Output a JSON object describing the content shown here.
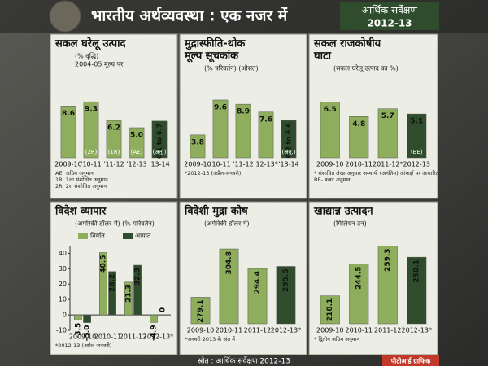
{
  "header": {
    "title": "भारतीय अर्थव्यवस्था : एक नजर में",
    "edition": "आर्थिक सर्वेक्षण",
    "year": "2012-13"
  },
  "footer": {
    "source": "स्रोत : आर्थिक सर्वेक्षण 2012-13",
    "credit": "पीटीआई ग्राफिक"
  },
  "chart_data": [
    {
      "type": "bar",
      "title": [
        "सकल घरेलू उत्पाद"
      ],
      "subtitles": [
        "(% वृद्धि)",
        "2004-05 मूल्य पर"
      ],
      "categories": [
        "2009-10",
        "'10-11",
        "'11-12",
        "'12-13",
        "'13-14"
      ],
      "values": [
        8.6,
        9.3,
        6.2,
        5.0,
        6.1
      ],
      "value_labels": [
        "8.6",
        "9.3",
        "6.2",
        "5.0",
        "6.1 to 6.7"
      ],
      "colors": [
        "#8fae5d",
        "#8fae5d",
        "#8fae5d",
        "#8fae5d",
        "#2f4d2c"
      ],
      "bar_notes": [
        null,
        "(2R)",
        "(1R)",
        "(AE)",
        "(अनु.)"
      ],
      "notes": [
        "AE: अग्रिम अनुमान",
        "1R: 1ला संशोधित अनुमान",
        "2R: 2रा संशोधित अनुमान"
      ],
      "ylim": [
        0,
        10
      ]
    },
    {
      "type": "bar",
      "title": [
        "मुद्रास्फीति-थोक",
        "मूल्य सूचकांक"
      ],
      "subtitles": [
        "(% परिवर्तन)   (औसत)"
      ],
      "categories": [
        "2009-10",
        "'10-11",
        "'11-12",
        "'12-13*",
        "'13-14"
      ],
      "values": [
        3.8,
        9.6,
        8.9,
        7.6,
        6.2
      ],
      "value_labels": [
        "3.8",
        "9.6",
        "8.9",
        "7.6",
        "6.2 to 6.6"
      ],
      "colors": [
        "#8fae5d",
        "#8fae5d",
        "#8fae5d",
        "#8fae5d",
        "#2f4d2c"
      ],
      "bar_notes": [
        null,
        null,
        null,
        null,
        "(अनु.)"
      ],
      "notes": [
        "*2012-13 (अप्रैल-जनवरी)"
      ],
      "ylim": [
        0,
        10
      ]
    },
    {
      "type": "bar",
      "title": [
        "सकल राजकोषीय",
        "घाटा"
      ],
      "subtitles": [
        "(सकल घरेलू उत्पाद का %)"
      ],
      "categories": [
        "2009-10",
        "2010-11",
        "2011-12*",
        "2012-13"
      ],
      "values": [
        6.5,
        4.8,
        5.7,
        5.1
      ],
      "colors": [
        "#8fae5d",
        "#8fae5d",
        "#8fae5d",
        "#2f4d2c"
      ],
      "bar_notes": [
        null,
        null,
        null,
        "(BE)"
      ],
      "notes": [
        "* संसाधित लेखा अनुसार अस्थायी (अनंतिम) आंकड़ों पर आधारित",
        "BE- बजट अनुमान"
      ],
      "ylim": [
        0,
        7
      ]
    },
    {
      "type": "bar",
      "title": [
        "विदेश व्यापार"
      ],
      "subtitles": [
        "(अमेरिकी डॉलर में) (% परिवर्तन)"
      ],
      "categories": [
        "2009-10",
        "2010-11",
        "2011-12",
        "2012-13*"
      ],
      "series": [
        {
          "name": "निर्यात",
          "color": "#8fae5d",
          "values": [
            -3.5,
            40.5,
            21.3,
            -4.9
          ]
        },
        {
          "name": "आयात",
          "color": "#2f4d2c",
          "values": [
            -5.0,
            28.2,
            32.3,
            0
          ],
          "value_labels": [
            "-5.0",
            "28.2",
            "32.3",
            "0"
          ]
        }
      ],
      "ylim": [
        -10,
        45
      ],
      "yticks": [
        40,
        30,
        20,
        10,
        0,
        -10
      ],
      "notes": [
        "*2012-13 (अप्रैल-जनवरी)"
      ]
    },
    {
      "type": "bar",
      "title": [
        "विदेशी मुद्रा कोष"
      ],
      "subtitles": [
        "(अमेरिकी डॉलर में)"
      ],
      "categories": [
        "2009-10",
        "2010-11",
        "2011-12",
        "2012-13*"
      ],
      "values": [
        279.1,
        304.8,
        294.4,
        295.5
      ],
      "colors": [
        "#8fae5d",
        "#8fae5d",
        "#8fae5d",
        "#2f4d2c"
      ],
      "notes": [
        "*जनवरी 2013 के अंत में"
      ],
      "ylim": [
        265,
        310
      ]
    },
    {
      "type": "bar",
      "title": [
        "खाद्यान्न उत्पादन"
      ],
      "subtitles": [
        "(मिलियन टन)"
      ],
      "categories": [
        "2009-10",
        "2010-11",
        "2011-12",
        "2012-13*"
      ],
      "values": [
        218.1,
        244.5,
        259.3,
        250.1
      ],
      "colors": [
        "#8fae5d",
        "#8fae5d",
        "#8fae5d",
        "#2f4d2c"
      ],
      "notes": [
        "* द्वितीय अग्रिम अनुमान"
      ],
      "ylim": [
        195,
        265
      ]
    }
  ]
}
